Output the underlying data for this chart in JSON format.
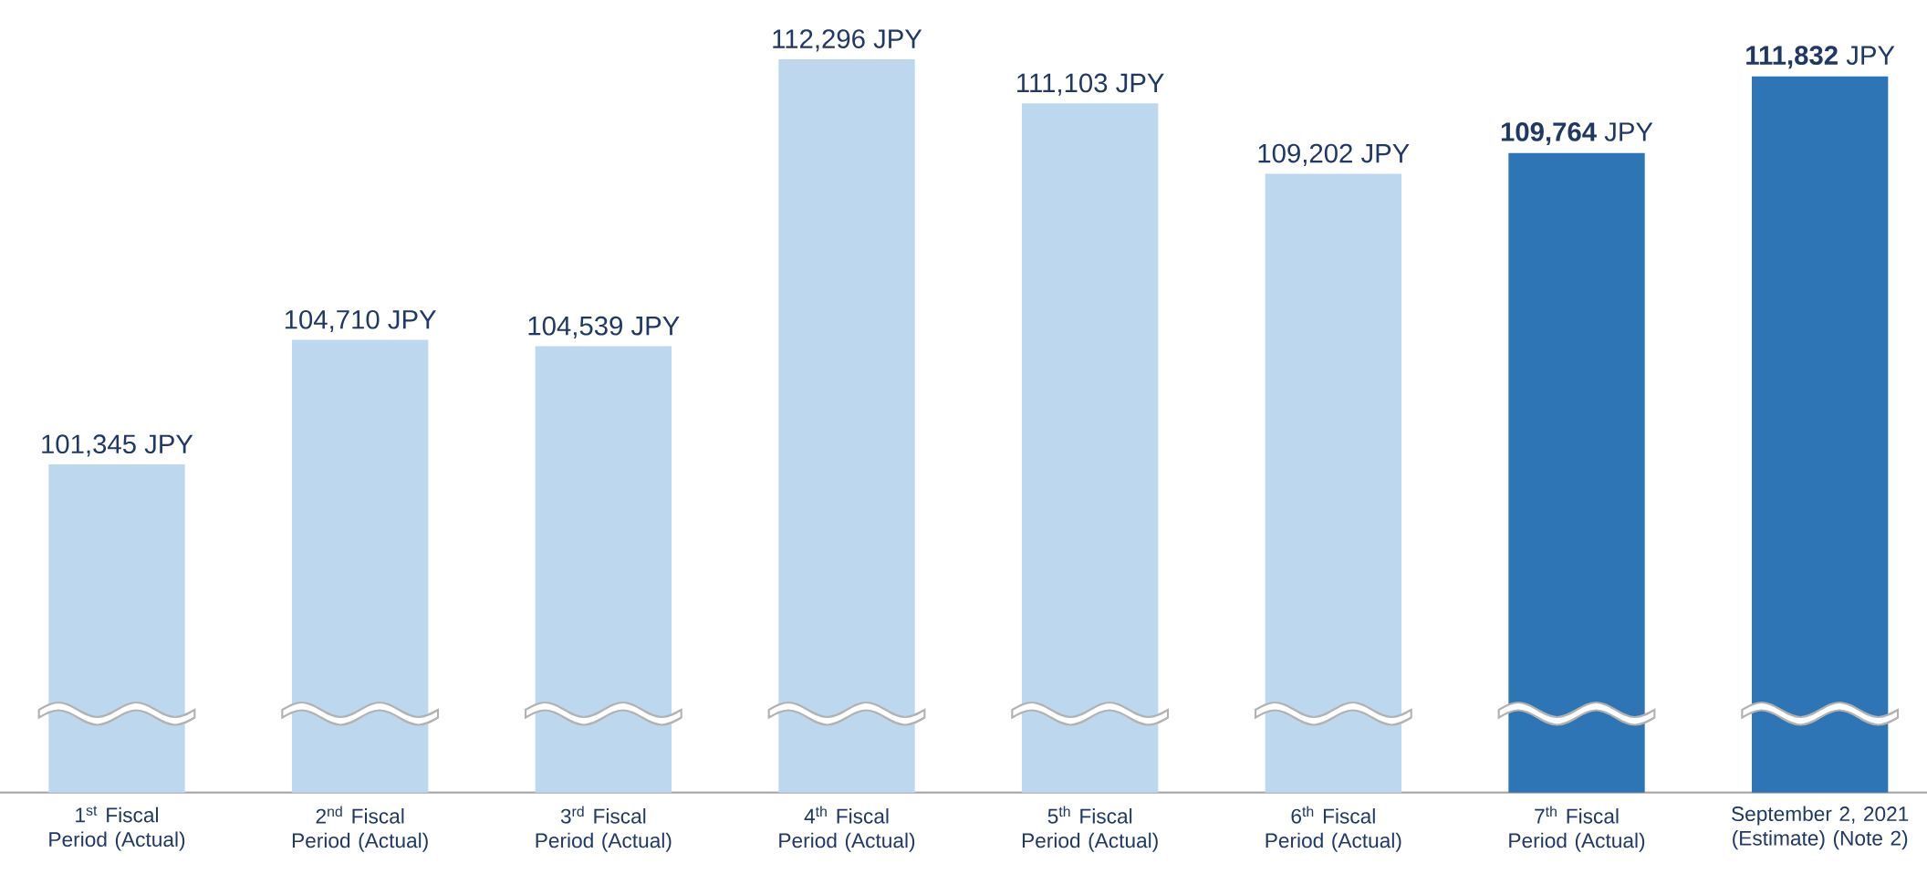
{
  "chart_data": {
    "type": "bar",
    "categories": [
      "1$^{st}$ Fiscal Period (Actual)",
      "2$^{nd}$ Fiscal Period (Actual)",
      "3$^{rd}$ Fiscal Period (Actual)",
      "4$^{th}$ Fiscal Period (Actual)",
      "5$^{th}$ Fiscal Period (Actual)",
      "6$^{th}$ Fiscal Period (Actual)",
      "7$^{th}$ Fiscal Period (Actual)",
      "September 2, 2021 (Estimate) (Note 2)"
    ],
    "values": [
      101345,
      104710,
      104539,
      112296,
      111103,
      109202,
      109764,
      111832
    ],
    "value_labels": [
      "101,345 JPY",
      "104,710 JPY",
      "104,539 JPY",
      "112,296 JPY",
      "111,103 JPY",
      "109,202 JPY",
      "**109,764** JPY",
      "**111,832** JPY"
    ],
    "ylim": [
      92480,
      112296
    ],
    "colors": [
      "#bdd7ee",
      "#bdd7ee",
      "#bdd7ee",
      "#bdd7ee",
      "#bdd7ee",
      "#bdd7ee",
      "#2e75b6",
      "#2e75b6"
    ],
    "tick_labels": "x"
  }
}
